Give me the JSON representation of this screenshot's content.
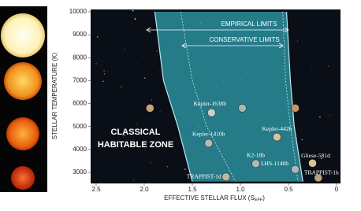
{
  "chart_data": {
    "type": "scatter",
    "y_label": "STELLAR TEMPERATURE (K)",
    "x_label": {
      "main": "EFFECTIVE STELLAR FLUX (S",
      "subscript": "EFF",
      "close": ")"
    },
    "annotations": {
      "empirical": "EMPIRICAL LIMITS",
      "conservative": "CONSERVATIVE LIMITS",
      "zone_line1": "CLASSICAL",
      "zone_line2": "HABITABLE ZONE"
    },
    "xlim": [
      2.5,
      0
    ],
    "ylim": [
      2500,
      10000
    ],
    "xticks": [
      2.5,
      {
        "value": 2,
        "label": "2.0"
      },
      1.5,
      {
        "value": 1,
        "label": "1.0"
      },
      0.5,
      0
    ],
    "yticks": [
      3000,
      4000,
      5000,
      6000,
      7000,
      8000,
      9000,
      10000
    ],
    "zone_color": "#2a8e9c",
    "boundaries": [
      {
        "style": "empirical",
        "x": [
          1.89,
          1.8,
          1.65,
          1.5
        ],
        "y": [
          10000,
          7000,
          5000,
          2600
        ]
      },
      {
        "style": "empirical",
        "x": [
          0.52,
          0.48,
          0.44,
          0.35
        ],
        "y": [
          10000,
          7000,
          5000,
          2600
        ]
      },
      {
        "style": "conservative",
        "x": [
          1.62,
          1.5,
          1.35,
          1.05
        ],
        "y": [
          10000,
          7000,
          5000,
          2600
        ]
      },
      {
        "style": "conservative",
        "x": [
          0.56,
          0.53,
          0.48,
          0.4
        ],
        "y": [
          10000,
          7000,
          5000,
          2600
        ]
      }
    ],
    "points": {
      "x": [
        1.94,
        1.3,
        0.98,
        0.43,
        1.33,
        0.62,
        0.84,
        1.15,
        0.43,
        0.25,
        0.19
      ],
      "y": [
        5800,
        5600,
        5800,
        5800,
        4270,
        4540,
        3380,
        2800,
        3130,
        3400,
        2760
      ],
      "labels": [
        null,
        "Kepler-1638b",
        null,
        null,
        "Kepler-1410b",
        "Kepler-442b",
        "K2-18b",
        "TRAPPIST-1d",
        "LHS-1140b",
        "Gliese-581d",
        "TRAPPIST-1h"
      ],
      "colors": [
        "#c9a27a",
        "#c8d0cc",
        "#a9b8b0",
        "#c79466",
        "#b8bdb0",
        "#d8c49a",
        "#b0b8b8",
        "#c0b8a0",
        "#aab8c0",
        "#d6c48c",
        "#b8a080"
      ]
    }
  }
}
